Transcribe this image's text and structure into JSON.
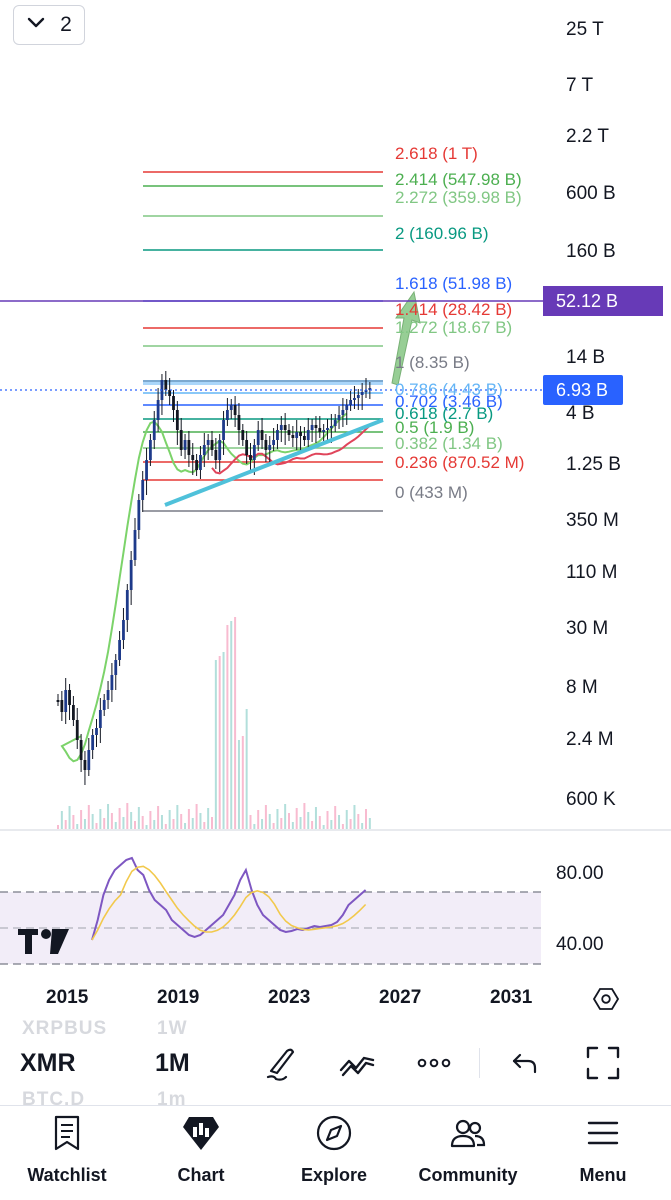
{
  "layouts": {
    "count": "2",
    "icon": "chevron-down-icon"
  },
  "price_axis": {
    "labels": [
      "25 T",
      "7 T",
      "2.2 T",
      "600 B",
      "160 B",
      "14 B",
      "4 B",
      "1.25 B",
      "350 M",
      "110 M",
      "30 M",
      "8 M",
      "2.4 M",
      "600 K"
    ],
    "current_price": "6.93 B",
    "current_price_color": "#2962ff",
    "line_level": "52.12 B",
    "line_level_color": "#673ab7"
  },
  "fib_levels": [
    {
      "text": "2.618 (1 T)",
      "color": "#e53935"
    },
    {
      "text": "2.414 (547.98 B)",
      "color": "#4caf50"
    },
    {
      "text": "2.272 (359.98 B)",
      "color": "#81c784"
    },
    {
      "text": "2 (160.96 B)",
      "color": "#089981"
    },
    {
      "text": "1.618 (51.98 B)",
      "color": "#2962ff"
    },
    {
      "text": "1.414 (28.42 B)",
      "color": "#e53935"
    },
    {
      "text": "1.272 (18.67 B)",
      "color": "#81c784"
    },
    {
      "text": "1 (8.35 B)",
      "color": "#787b86"
    },
    {
      "text": "0.786 (4.43 B)",
      "color": "#64b5f6"
    },
    {
      "text": "0.702 (3.46 B)",
      "color": "#2962ff"
    },
    {
      "text": "0.618 (2.7 B)",
      "color": "#089981"
    },
    {
      "text": "0.5 (1.9 B)",
      "color": "#4caf50"
    },
    {
      "text": "0.382 (1.34 B)",
      "color": "#81c784"
    },
    {
      "text": "0.236 (870.52 M)",
      "color": "#e53935"
    },
    {
      "text": "0 (433 M)",
      "color": "#787b86"
    }
  ],
  "time_axis": [
    "2015",
    "2019",
    "2023",
    "2027",
    "2031"
  ],
  "rsi_axis": [
    "80.00",
    "40.00"
  ],
  "toolbar": {
    "watchlist_ghost_prev": "XRPBUS",
    "interval_ghost_prev": "1W",
    "watchlist_ghost_next": "BTC.D",
    "interval_ghost_next": "1m",
    "symbol": "XMR",
    "interval": "1M",
    "icons": [
      "brush-icon",
      "drawings-icon",
      "more-icon",
      "undo-icon",
      "fullscreen-icon"
    ]
  },
  "nav": [
    {
      "label": "Watchlist",
      "icon": "watchlist-icon"
    },
    {
      "label": "Chart",
      "icon": "chart-icon"
    },
    {
      "label": "Explore",
      "icon": "compass-icon"
    },
    {
      "label": "Community",
      "icon": "community-icon"
    },
    {
      "label": "Menu",
      "icon": "menu-icon"
    }
  ],
  "chart_data": {
    "type": "candlestick",
    "symbol": "XMR",
    "interval": "1M",
    "scale": "log",
    "last_price": "6.93 B",
    "fib_retracement": {
      "anchor_low": "433 M",
      "anchor_high": "8.35 B"
    },
    "indicators": [
      "RSI"
    ]
  }
}
